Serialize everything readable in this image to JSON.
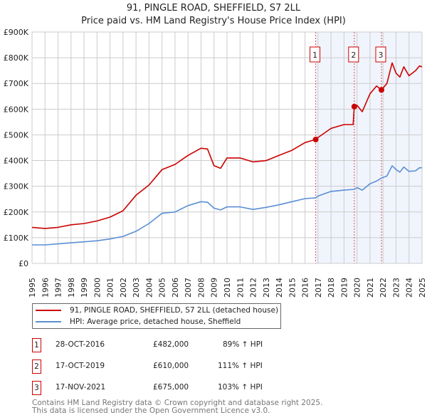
{
  "chart_data": {
    "type": "line",
    "title": "91, PINGLE ROAD, SHEFFIELD, S7 2LL",
    "subtitle": "Price paid vs. HM Land Registry's House Price Index (HPI)",
    "ylim": [
      0,
      900000
    ],
    "xlim": [
      1995,
      2025
    ],
    "y_ticks": [
      {
        "v": 0,
        "label": "£0"
      },
      {
        "v": 100000,
        "label": "£100K"
      },
      {
        "v": 200000,
        "label": "£200K"
      },
      {
        "v": 300000,
        "label": "£300K"
      },
      {
        "v": 400000,
        "label": "£400K"
      },
      {
        "v": 500000,
        "label": "£500K"
      },
      {
        "v": 600000,
        "label": "£600K"
      },
      {
        "v": 700000,
        "label": "£700K"
      },
      {
        "v": 800000,
        "label": "£800K"
      },
      {
        "v": 900000,
        "label": "£900K"
      }
    ],
    "x_ticks": [
      "1995",
      "1996",
      "1997",
      "1998",
      "1999",
      "2000",
      "2001",
      "2002",
      "2003",
      "2004",
      "2005",
      "2006",
      "2007",
      "2008",
      "2009",
      "2010",
      "2011",
      "2012",
      "2013",
      "2014",
      "2015",
      "2016",
      "2017",
      "2018",
      "2019",
      "2020",
      "2021",
      "2022",
      "2023",
      "2024",
      "2025"
    ],
    "grid": true,
    "series": [
      {
        "name": "91, PINGLE ROAD, SHEFFIELD, S7 2LL (detached house)",
        "color": "#cc0000",
        "x": [
          1995,
          1996,
          1997,
          1998,
          1999,
          2000,
          2001,
          2002,
          2003,
          2004,
          2005,
          2006,
          2007,
          2008,
          2008.5,
          2009,
          2009.5,
          2010,
          2011,
          2012,
          2013,
          2014,
          2015,
          2016,
          2016.82,
          2017,
          2018,
          2019,
          2019.7,
          2019.79,
          2020,
          2020.4,
          2021,
          2021.5,
          2021.88,
          2022.3,
          2022.7,
          2023,
          2023.3,
          2023.6,
          2024,
          2024.5,
          2024.8,
          2025
        ],
        "y": [
          140000,
          136000,
          140000,
          150000,
          155000,
          165000,
          180000,
          205000,
          265000,
          305000,
          365000,
          385000,
          420000,
          448000,
          445000,
          380000,
          370000,
          410000,
          410000,
          395000,
          400000,
          420000,
          440000,
          470000,
          482000,
          490000,
          525000,
          540000,
          540000,
          610000,
          615000,
          590000,
          660000,
          690000,
          675000,
          700000,
          780000,
          740000,
          725000,
          765000,
          730000,
          750000,
          768000,
          765000
        ]
      },
      {
        "name": "HPI: Average price, detached house, Sheffield",
        "color": "#5b8fd4",
        "x": [
          1995,
          1996,
          1997,
          1998,
          1999,
          2000,
          2001,
          2002,
          2003,
          2004,
          2005,
          2006,
          2007,
          2008,
          2008.5,
          2009,
          2009.5,
          2010,
          2011,
          2012,
          2013,
          2014,
          2015,
          2016,
          2016.82,
          2017,
          2018,
          2019,
          2019.79,
          2020,
          2020.4,
          2021,
          2021.5,
          2021.88,
          2022.3,
          2022.7,
          2023,
          2023.3,
          2023.6,
          2024,
          2024.5,
          2024.8,
          2025
        ],
        "y": [
          72000,
          72000,
          76000,
          80000,
          84000,
          88000,
          95000,
          105000,
          125000,
          155000,
          195000,
          200000,
          225000,
          240000,
          238000,
          215000,
          208000,
          220000,
          220000,
          210000,
          218000,
          228000,
          240000,
          252000,
          255000,
          262000,
          280000,
          285000,
          288000,
          295000,
          285000,
          310000,
          320000,
          332000,
          340000,
          380000,
          365000,
          355000,
          375000,
          358000,
          360000,
          372000,
          372000
        ]
      }
    ],
    "sales": [
      {
        "num": "1",
        "x": 2016.82,
        "price": 482000,
        "date": "28-OCT-2016",
        "price_label": "£482,000",
        "hpi": "89% ↑ HPI"
      },
      {
        "num": "2",
        "x": 2019.79,
        "price": 610000,
        "date": "17-OCT-2019",
        "price_label": "£610,000",
        "hpi": "111% ↑ HPI"
      },
      {
        "num": "3",
        "x": 2021.88,
        "price": 675000,
        "date": "17-NOV-2021",
        "price_label": "£675,000",
        "hpi": "103% ↑ HPI"
      }
    ],
    "legend_placement": "below"
  },
  "footer": [
    "Contains HM Land Registry data © Crown copyright and database right 2025.",
    "This data is licensed under the Open Government Licence v3.0."
  ]
}
